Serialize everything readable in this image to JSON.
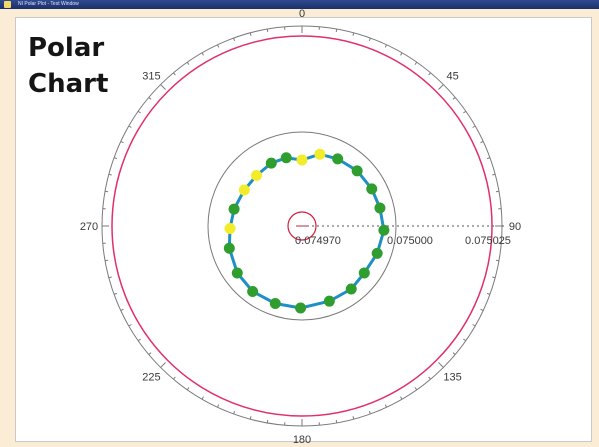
{
  "window": {
    "title": "NI Polar Plot - Test Window",
    "colors": {
      "titlebar": "#1b2f6a",
      "background": "#fbecd6",
      "plot_bg": "#ffffff"
    }
  },
  "chart_data": {
    "type": "polar",
    "title_lines": [
      "Polar",
      "Chart"
    ],
    "angle_labels": [
      "0",
      "45",
      "90",
      "135",
      "180",
      "225",
      "270",
      "315"
    ],
    "radial_tick_labels": [
      "0.074970",
      "0.075000",
      "0.075025"
    ],
    "radial_range": [
      0.07497,
      0.075025
    ],
    "grid": true,
    "colors": {
      "outer_circle": "#7a7a7a",
      "red_circle": "#e0306a",
      "inner_grid_circle": "#7a7a7a",
      "center_marker": "#d01f3a",
      "series_line": "#1f8fc4",
      "green_marker": "#2f9e2f",
      "yellow_marker": "#f2ec2a"
    },
    "reference_circles": [
      {
        "name": "outer",
        "r": 0.075028,
        "style": "gray"
      },
      {
        "name": "red",
        "r": 0.075021,
        "style": "red"
      },
      {
        "name": "inner",
        "r": 0.075003,
        "style": "gray"
      }
    ],
    "series": [
      {
        "points": [
          {
            "theta": 0,
            "r": 0.075,
            "color": "yellow"
          },
          {
            "theta": 14,
            "r": 0.075,
            "color": "yellow"
          },
          {
            "theta": 28,
            "r": 0.075,
            "color": "green"
          },
          {
            "theta": 45,
            "r": 0.075,
            "color": "green"
          },
          {
            "theta": 62,
            "r": 0.075,
            "color": "green"
          },
          {
            "theta": 77,
            "r": 0.075,
            "color": "green"
          },
          {
            "theta": 93,
            "r": 0.075,
            "color": "green"
          },
          {
            "theta": 110,
            "r": 0.075,
            "color": "green"
          },
          {
            "theta": 127,
            "r": 0.075,
            "color": "green"
          },
          {
            "theta": 142,
            "r": 0.075,
            "color": "green"
          },
          {
            "theta": 160,
            "r": 0.075,
            "color": "green"
          },
          {
            "theta": 181,
            "r": 0.075,
            "color": "green"
          },
          {
            "theta": 199,
            "r": 0.075,
            "color": "green"
          },
          {
            "theta": 217,
            "r": 0.075,
            "color": "green"
          },
          {
            "theta": 234,
            "r": 0.075,
            "color": "green"
          },
          {
            "theta": 253,
            "r": 0.075,
            "color": "green"
          },
          {
            "theta": 268,
            "r": 0.075,
            "color": "yellow"
          },
          {
            "theta": 284,
            "r": 0.075,
            "color": "green"
          },
          {
            "theta": 302,
            "r": 0.075,
            "color": "yellow"
          },
          {
            "theta": 318,
            "r": 0.075,
            "color": "yellow"
          },
          {
            "theta": 334,
            "r": 0.075,
            "color": "green"
          },
          {
            "theta": 347,
            "r": 0.075,
            "color": "green"
          }
        ]
      }
    ]
  }
}
